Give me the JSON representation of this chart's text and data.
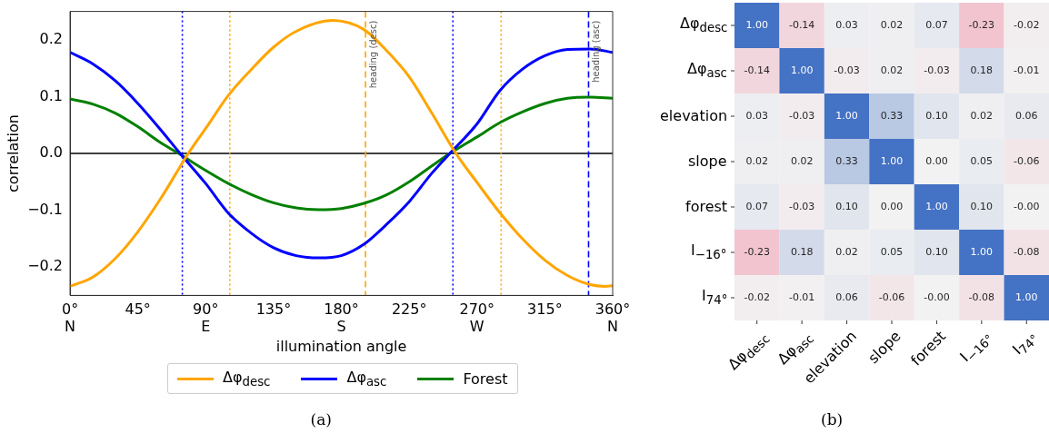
{
  "chart_data": [
    {
      "type": "line",
      "xlabel": "illumination angle",
      "ylabel": "correlation",
      "xlim": [
        0,
        360
      ],
      "ylim": [
        -0.25,
        0.25
      ],
      "xticks": [
        {
          "value": 0,
          "label": "0°\nN"
        },
        {
          "value": 45,
          "label": "45°"
        },
        {
          "value": 90,
          "label": "90°\nE"
        },
        {
          "value": 135,
          "label": "135°"
        },
        {
          "value": 180,
          "label": "180°\nS"
        },
        {
          "value": 225,
          "label": "225°"
        },
        {
          "value": 270,
          "label": "270°\nW"
        },
        {
          "value": 315,
          "label": "315°"
        },
        {
          "value": 360,
          "label": "360°\nN"
        }
      ],
      "yticks": [
        {
          "value": -0.2,
          "label": "−0.2"
        },
        {
          "value": -0.1,
          "label": "−0.1"
        },
        {
          "value": 0,
          "label": "0.0"
        },
        {
          "value": 0.1,
          "label": "0.1"
        },
        {
          "value": 0.2,
          "label": "0.2"
        }
      ],
      "marker": "none",
      "legend": "bottom",
      "series": [
        {
          "name": "Δφ$_{desc}$",
          "color": "#ffa500",
          "x": [
            0,
            15,
            30,
            45,
            60,
            78.5,
            90,
            105,
            120,
            135,
            150,
            174,
            195,
            210,
            225,
            240,
            256,
            270,
            285,
            300,
            315,
            330,
            345,
            355,
            360
          ],
          "values": [
            -0.234,
            -0.218,
            -0.185,
            -0.138,
            -0.08,
            0,
            0.044,
            0.102,
            0.147,
            0.187,
            0.215,
            0.234,
            0.218,
            0.181,
            0.135,
            0.071,
            0,
            -0.051,
            -0.104,
            -0.15,
            -0.188,
            -0.215,
            -0.231,
            -0.234,
            -0.233
          ]
        },
        {
          "name": "Δφ$_{asc}$",
          "color": "#0000ff",
          "x": [
            0,
            15,
            30,
            45,
            60,
            73,
            90,
            105,
            120,
            135,
            150,
            165,
            180,
            195,
            210,
            225,
            240,
            252,
            270,
            285,
            300,
            315,
            330,
            345,
            360
          ],
          "values": [
            0.178,
            0.158,
            0.128,
            0.088,
            0.042,
            0,
            -0.053,
            -0.105,
            -0.14,
            -0.166,
            -0.18,
            -0.184,
            -0.18,
            -0.16,
            -0.125,
            -0.085,
            -0.035,
            0,
            0.052,
            0.11,
            0.148,
            0.172,
            0.183,
            0.184,
            0.178
          ]
        },
        {
          "name": "Forest",
          "color": "#008000",
          "x": [
            0,
            15,
            30,
            45,
            60,
            72,
            90,
            105,
            120,
            135,
            150,
            165,
            180,
            195,
            210,
            225,
            240,
            252,
            270,
            285,
            300,
            315,
            330,
            345,
            360
          ],
          "values": [
            0.096,
            0.087,
            0.071,
            0.047,
            0.019,
            0,
            -0.03,
            -0.053,
            -0.072,
            -0.087,
            -0.096,
            -0.099,
            -0.097,
            -0.088,
            -0.073,
            -0.05,
            -0.022,
            0,
            0.029,
            0.054,
            0.073,
            0.088,
            0.097,
            0.099,
            0.097
          ]
        }
      ],
      "ref_lines": [
        {
          "axis": "y",
          "value": 0,
          "color": "#000000",
          "line_style": "solid"
        },
        {
          "axis": "x",
          "value": 74.5,
          "color": "#0000ff",
          "line_style": "dotted"
        },
        {
          "axis": "x",
          "value": 254,
          "color": "#0000ff",
          "line_style": "dotted"
        },
        {
          "axis": "x",
          "value": 106,
          "color": "#ffa500",
          "line_style": "dotted"
        },
        {
          "axis": "x",
          "value": 286,
          "color": "#ffa500",
          "line_style": "dotted"
        },
        {
          "axis": "x",
          "value": 196,
          "color": "#ffa500",
          "line_style": "dashed",
          "label": "heading (desc)"
        },
        {
          "axis": "x",
          "value": 344,
          "color": "#0000ff",
          "line_style": "dashed",
          "label": "heading (asc)"
        }
      ],
      "annotations": [
        "(a)"
      ]
    },
    {
      "type": "heatmap",
      "categories": [
        "Δφ$_{desc}$",
        "Δφ$_{asc}$",
        "elevation",
        "slope",
        "forest",
        "I$_{−16°}$",
        "I$_{74°}$"
      ],
      "y_categories": [
        "Δφ$_{desc}$",
        "Δφ$_{asc}$",
        "elevation",
        "slope",
        "forest",
        "I$_{−16°}$",
        "I$_{74°}$"
      ],
      "cells": [
        [
          1.0,
          -0.14,
          0.03,
          0.02,
          0.07,
          -0.23,
          -0.02
        ],
        [
          -0.14,
          1.0,
          -0.03,
          0.02,
          -0.03,
          0.18,
          -0.01
        ],
        [
          0.03,
          -0.03,
          1.0,
          0.33,
          0.1,
          0.02,
          0.06
        ],
        [
          0.02,
          0.02,
          0.33,
          1.0,
          0.0,
          0.05,
          -0.06
        ],
        [
          0.07,
          -0.03,
          0.1,
          0.0,
          1.0,
          0.1,
          -0.0
        ],
        [
          -0.23,
          0.18,
          0.02,
          0.05,
          0.1,
          1.0,
          -0.08
        ],
        [
          -0.02,
          -0.01,
          0.06,
          -0.06,
          -0.0,
          -0.08,
          1.0
        ]
      ],
      "cell_labels": [
        [
          "1.00",
          "-0.14",
          "0.03",
          "0.02",
          "0.07",
          "-0.23",
          "-0.02"
        ],
        [
          "-0.14",
          "1.00",
          "-0.03",
          "0.02",
          "-0.03",
          "0.18",
          "-0.01"
        ],
        [
          "0.03",
          "-0.03",
          "1.00",
          "0.33",
          "0.10",
          "0.02",
          "0.06"
        ],
        [
          "0.02",
          "0.02",
          "0.33",
          "1.00",
          "0.00",
          "0.05",
          "-0.06"
        ],
        [
          "0.07",
          "-0.03",
          "0.10",
          "0.00",
          "1.00",
          "0.10",
          "-0.00"
        ],
        [
          "-0.23",
          "0.18",
          "0.02",
          "0.05",
          "0.10",
          "1.00",
          "-0.08"
        ],
        [
          "-0.02",
          "-0.01",
          "0.06",
          "-0.06",
          "-0.00",
          "-0.08",
          "1.00"
        ]
      ],
      "annotations": [
        "(b)"
      ]
    }
  ]
}
